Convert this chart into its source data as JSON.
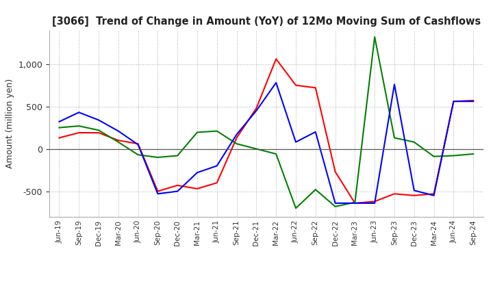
{
  "title": "[3066]  Trend of Change in Amount (YoY) of 12Mo Moving Sum of Cashflows",
  "ylabel": "Amount (million yen)",
  "x_labels": [
    "Jun-19",
    "Sep-19",
    "Dec-19",
    "Mar-20",
    "Jun-20",
    "Sep-20",
    "Dec-20",
    "Mar-21",
    "Jun-21",
    "Sep-21",
    "Dec-21",
    "Mar-22",
    "Jun-22",
    "Sep-22",
    "Dec-22",
    "Mar-23",
    "Jun-23",
    "Sep-23",
    "Dec-23",
    "Mar-24",
    "Jun-24",
    "Sep-24"
  ],
  "operating": [
    130,
    190,
    190,
    100,
    60,
    -500,
    -430,
    -470,
    -400,
    130,
    480,
    1060,
    750,
    720,
    -270,
    -640,
    -620,
    -530,
    -550,
    -530,
    560,
    570
  ],
  "investing": [
    250,
    270,
    220,
    80,
    -70,
    -100,
    -80,
    195,
    210,
    60,
    0,
    -60,
    -700,
    -480,
    -680,
    -630,
    1320,
    130,
    80,
    -90,
    -80,
    -60
  ],
  "free": [
    320,
    430,
    340,
    210,
    50,
    -530,
    -500,
    -280,
    -200,
    170,
    450,
    780,
    80,
    200,
    -640,
    -640,
    -640,
    760,
    -490,
    -550,
    560,
    560
  ],
  "operating_color": "#ff0000",
  "investing_color": "#008000",
  "free_color": "#0000ff",
  "ylim": [
    -800,
    1400
  ],
  "yticks": [
    -500,
    0,
    500,
    1000
  ],
  "background_color": "#ffffff",
  "grid_color": "#aaaaaa"
}
